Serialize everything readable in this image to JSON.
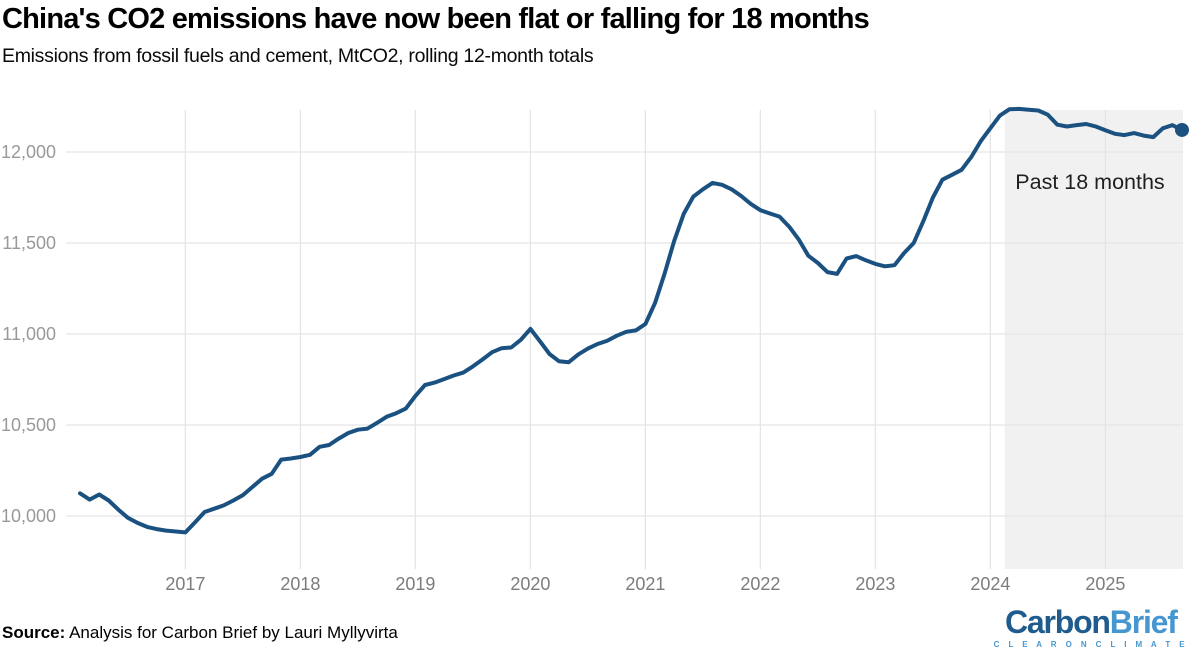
{
  "header": {
    "title": "China's CO2 emissions have now been flat or falling for 18 months",
    "subtitle": "Emissions from fossil fuels and cement, MtCO2, rolling 12-month totals"
  },
  "chart_data": {
    "type": "line",
    "title": "China's CO2 emissions have now been flat or falling for 18 months",
    "subtitle": "Emissions from fossil fuels and cement, MtCO2, rolling 12-month totals",
    "series_name": "China CO2 emissions, rolling 12-month total",
    "unit": "MtCO2",
    "frequency": "monthly",
    "x_start": "2016-02",
    "x_end": "2025-09",
    "values": [
      10125,
      10090,
      10118,
      10085,
      10035,
      9990,
      9962,
      9940,
      9928,
      9920,
      9915,
      9910,
      9965,
      10022,
      10040,
      10058,
      10085,
      10115,
      10160,
      10205,
      10232,
      10310,
      10316,
      10324,
      10336,
      10380,
      10390,
      10425,
      10456,
      10474,
      10480,
      10512,
      10545,
      10565,
      10590,
      10660,
      10720,
      10733,
      10752,
      10772,
      10788,
      10822,
      10860,
      10900,
      10922,
      10926,
      10968,
      11028,
      10960,
      10890,
      10850,
      10845,
      10888,
      10920,
      10945,
      10962,
      10990,
      11012,
      11020,
      11055,
      11170,
      11330,
      11510,
      11660,
      11755,
      11795,
      11830,
      11820,
      11795,
      11758,
      11715,
      11680,
      11662,
      11645,
      11590,
      11520,
      11430,
      11390,
      11340,
      11330,
      11415,
      11428,
      11405,
      11385,
      11372,
      11378,
      11445,
      11500,
      11620,
      11750,
      11848,
      11875,
      11902,
      11972,
      12060,
      12130,
      12200,
      12235,
      12237,
      12232,
      12228,
      12205,
      12150,
      12140,
      12148,
      12154,
      12140,
      12120,
      12100,
      12093,
      12104,
      12090,
      12082,
      12130,
      12148,
      12121
    ],
    "x_tick_labels": [
      "2017",
      "2018",
      "2019",
      "2020",
      "2021",
      "2022",
      "2023",
      "2024",
      "2025"
    ],
    "y_ticks": [
      10000,
      10500,
      11000,
      11500,
      12000
    ],
    "y_tick_labels": [
      "10,000",
      "10,500",
      "11,000",
      "11,500",
      "12,000"
    ],
    "ylim": [
      9710,
      12230
    ],
    "grid": true,
    "legend": "none",
    "annotation": {
      "label": "Past 18 months",
      "shade_start": "2024-03",
      "shade_start_index": 97
    },
    "line_color": "#1a5180",
    "shade_color": "#f1f1f1",
    "grid_color": "#e5e5e5",
    "x_tick_color": "#7c7c7c",
    "y_tick_color": "#999999",
    "annotation_color": "#1f1f1f"
  },
  "footer": {
    "source_label": "Source:",
    "source_text": " Analysis for Carbon Brief by Lauri Myllyvirta"
  },
  "logo": {
    "part1": "Carbon",
    "part2": "Brief",
    "tagline": "C L E A R   O N   C L I M A T E",
    "color1": "#1f5c8d",
    "color2": "#4697d1"
  }
}
